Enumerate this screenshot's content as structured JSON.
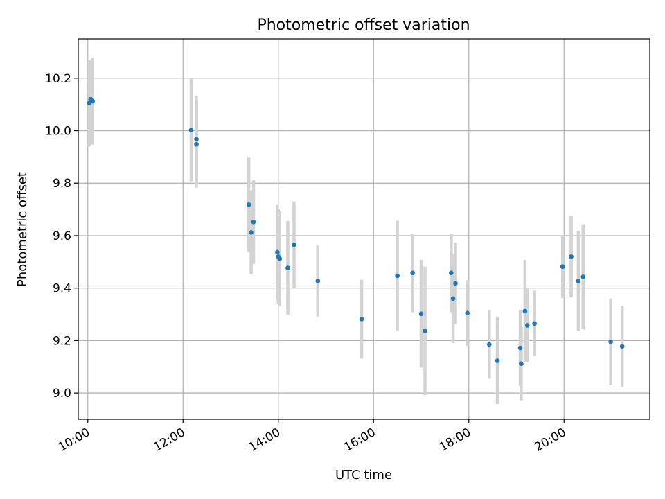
{
  "chart_data": {
    "type": "scatter",
    "title": "Photometric offset variation",
    "xlabel": "UTC time",
    "ylabel": "Photometric offset",
    "xlim": [
      9.8,
      21.8
    ],
    "ylim": [
      8.9,
      10.35
    ],
    "grid": true,
    "x_ticks": [
      {
        "value": 10,
        "label": "10:00"
      },
      {
        "value": 12,
        "label": "12:00"
      },
      {
        "value": 14,
        "label": "14:00"
      },
      {
        "value": 16,
        "label": "16:00"
      },
      {
        "value": 18,
        "label": "18:00"
      },
      {
        "value": 20,
        "label": "20:00"
      }
    ],
    "y_ticks": [
      {
        "value": 9.0,
        "label": "9.0"
      },
      {
        "value": 9.2,
        "label": "9.2"
      },
      {
        "value": 9.4,
        "label": "9.4"
      },
      {
        "value": 9.6,
        "label": "9.6"
      },
      {
        "value": 9.8,
        "label": "9.8"
      },
      {
        "value": 10.0,
        "label": "10.0"
      },
      {
        "value": 10.2,
        "label": "10.2"
      }
    ],
    "colors": {
      "point": "#1f77b4",
      "errorbar": "#d3d3d3"
    },
    "points": [
      {
        "x": 10.03,
        "y": 10.105,
        "err": 0.165
      },
      {
        "x": 10.06,
        "y": 10.12,
        "err": 0.15
      },
      {
        "x": 10.1,
        "y": 10.112,
        "err": 0.165
      },
      {
        "x": 12.17,
        "y": 10.002,
        "err": 0.195
      },
      {
        "x": 12.28,
        "y": 9.968,
        "err": 0.165
      },
      {
        "x": 12.28,
        "y": 9.948,
        "err": 0.165
      },
      {
        "x": 13.38,
        "y": 9.718,
        "err": 0.18
      },
      {
        "x": 13.43,
        "y": 9.612,
        "err": 0.16
      },
      {
        "x": 13.48,
        "y": 9.652,
        "err": 0.16
      },
      {
        "x": 13.98,
        "y": 9.537,
        "err": 0.18
      },
      {
        "x": 14.0,
        "y": 9.52,
        "err": 0.18
      },
      {
        "x": 14.03,
        "y": 9.512,
        "err": 0.18
      },
      {
        "x": 14.2,
        "y": 9.477,
        "err": 0.178
      },
      {
        "x": 14.33,
        "y": 9.565,
        "err": 0.165
      },
      {
        "x": 14.83,
        "y": 9.427,
        "err": 0.135
      },
      {
        "x": 15.75,
        "y": 9.282,
        "err": 0.15
      },
      {
        "x": 16.5,
        "y": 9.447,
        "err": 0.21
      },
      {
        "x": 16.82,
        "y": 9.458,
        "err": 0.15
      },
      {
        "x": 17.0,
        "y": 9.302,
        "err": 0.205
      },
      {
        "x": 17.08,
        "y": 9.237,
        "err": 0.245
      },
      {
        "x": 17.63,
        "y": 9.458,
        "err": 0.15
      },
      {
        "x": 17.67,
        "y": 9.36,
        "err": 0.17
      },
      {
        "x": 17.72,
        "y": 9.418,
        "err": 0.155
      },
      {
        "x": 17.97,
        "y": 9.305,
        "err": 0.125
      },
      {
        "x": 18.43,
        "y": 9.185,
        "err": 0.13
      },
      {
        "x": 18.6,
        "y": 9.123,
        "err": 0.165
      },
      {
        "x": 19.08,
        "y": 9.172,
        "err": 0.145
      },
      {
        "x": 19.1,
        "y": 9.112,
        "err": 0.14
      },
      {
        "x": 19.18,
        "y": 9.312,
        "err": 0.195
      },
      {
        "x": 19.23,
        "y": 9.258,
        "err": 0.14
      },
      {
        "x": 19.38,
        "y": 9.265,
        "err": 0.125
      },
      {
        "x": 19.97,
        "y": 9.482,
        "err": 0.12
      },
      {
        "x": 20.15,
        "y": 9.52,
        "err": 0.155
      },
      {
        "x": 20.3,
        "y": 9.427,
        "err": 0.19
      },
      {
        "x": 20.4,
        "y": 9.443,
        "err": 0.2
      },
      {
        "x": 20.98,
        "y": 9.195,
        "err": 0.165
      },
      {
        "x": 21.22,
        "y": 9.178,
        "err": 0.155
      }
    ]
  }
}
